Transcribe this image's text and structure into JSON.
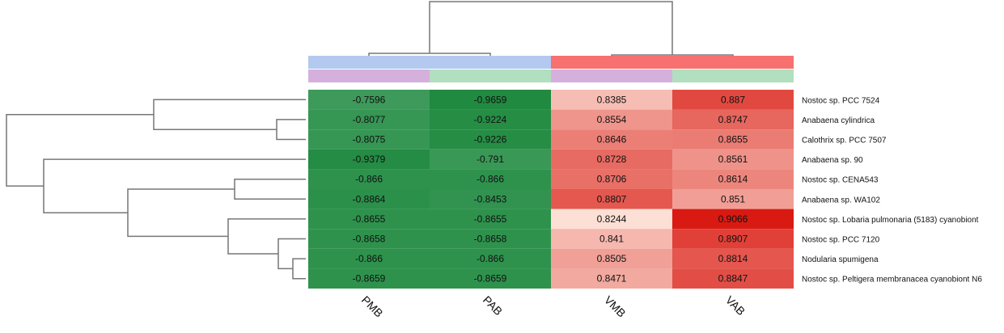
{
  "chart_data": {
    "type": "heatmap",
    "title": "",
    "columns": [
      "PMB",
      "PAB",
      "VMB",
      "VAB"
    ],
    "rows": [
      "Nostoc sp. PCC 7524",
      "Anabaena cylindrica",
      "Calothrix sp. PCC 7507",
      "Anabaena sp. 90",
      "Nostoc sp. CENA543",
      "Anabaena sp. WA102",
      "Nostoc sp. Lobaria pulmonaria (5183) cyanobiont",
      "Nostoc sp. PCC 7120",
      "Nodularia spumigena",
      "Nostoc sp. Peltigera membranacea cyanobiont N6"
    ],
    "values": [
      [
        "-0.7596",
        "-0.9659",
        "0.8385",
        "0.887"
      ],
      [
        "-0.8077",
        "-0.9224",
        "0.8554",
        "0.8747"
      ],
      [
        "-0.8075",
        "-0.9226",
        "0.8646",
        "0.8655"
      ],
      [
        "-0.9379",
        "-0.791",
        "0.8728",
        "0.8561"
      ],
      [
        "-0.866",
        "-0.866",
        "0.8706",
        "0.8614"
      ],
      [
        "-0.8864",
        "-0.8453",
        "0.8807",
        "0.851"
      ],
      [
        "-0.8655",
        "-0.8655",
        "0.8244",
        "0.9066"
      ],
      [
        "-0.8658",
        "-0.8658",
        "0.841",
        "0.8907"
      ],
      [
        "-0.866",
        "-0.866",
        "0.8505",
        "0.8814"
      ],
      [
        "-0.8659",
        "-0.8659",
        "0.8471",
        "0.8847"
      ]
    ],
    "column_annotations": [
      [
        "#b4c9ef",
        "#b4c9ef",
        "#f6716f",
        "#f6716f"
      ],
      [
        "#d5b0dc",
        "#b1dfbf",
        "#d5b0dc",
        "#b1dfbf"
      ]
    ],
    "colors": {
      "negative_light": "#3d9a5a",
      "negative_dark": "#208a40",
      "positive_light": "#fcdfd5",
      "positive_dark": "#d91a12"
    },
    "row_dendrogram": true,
    "column_dendrogram": true,
    "legend": "none"
  }
}
